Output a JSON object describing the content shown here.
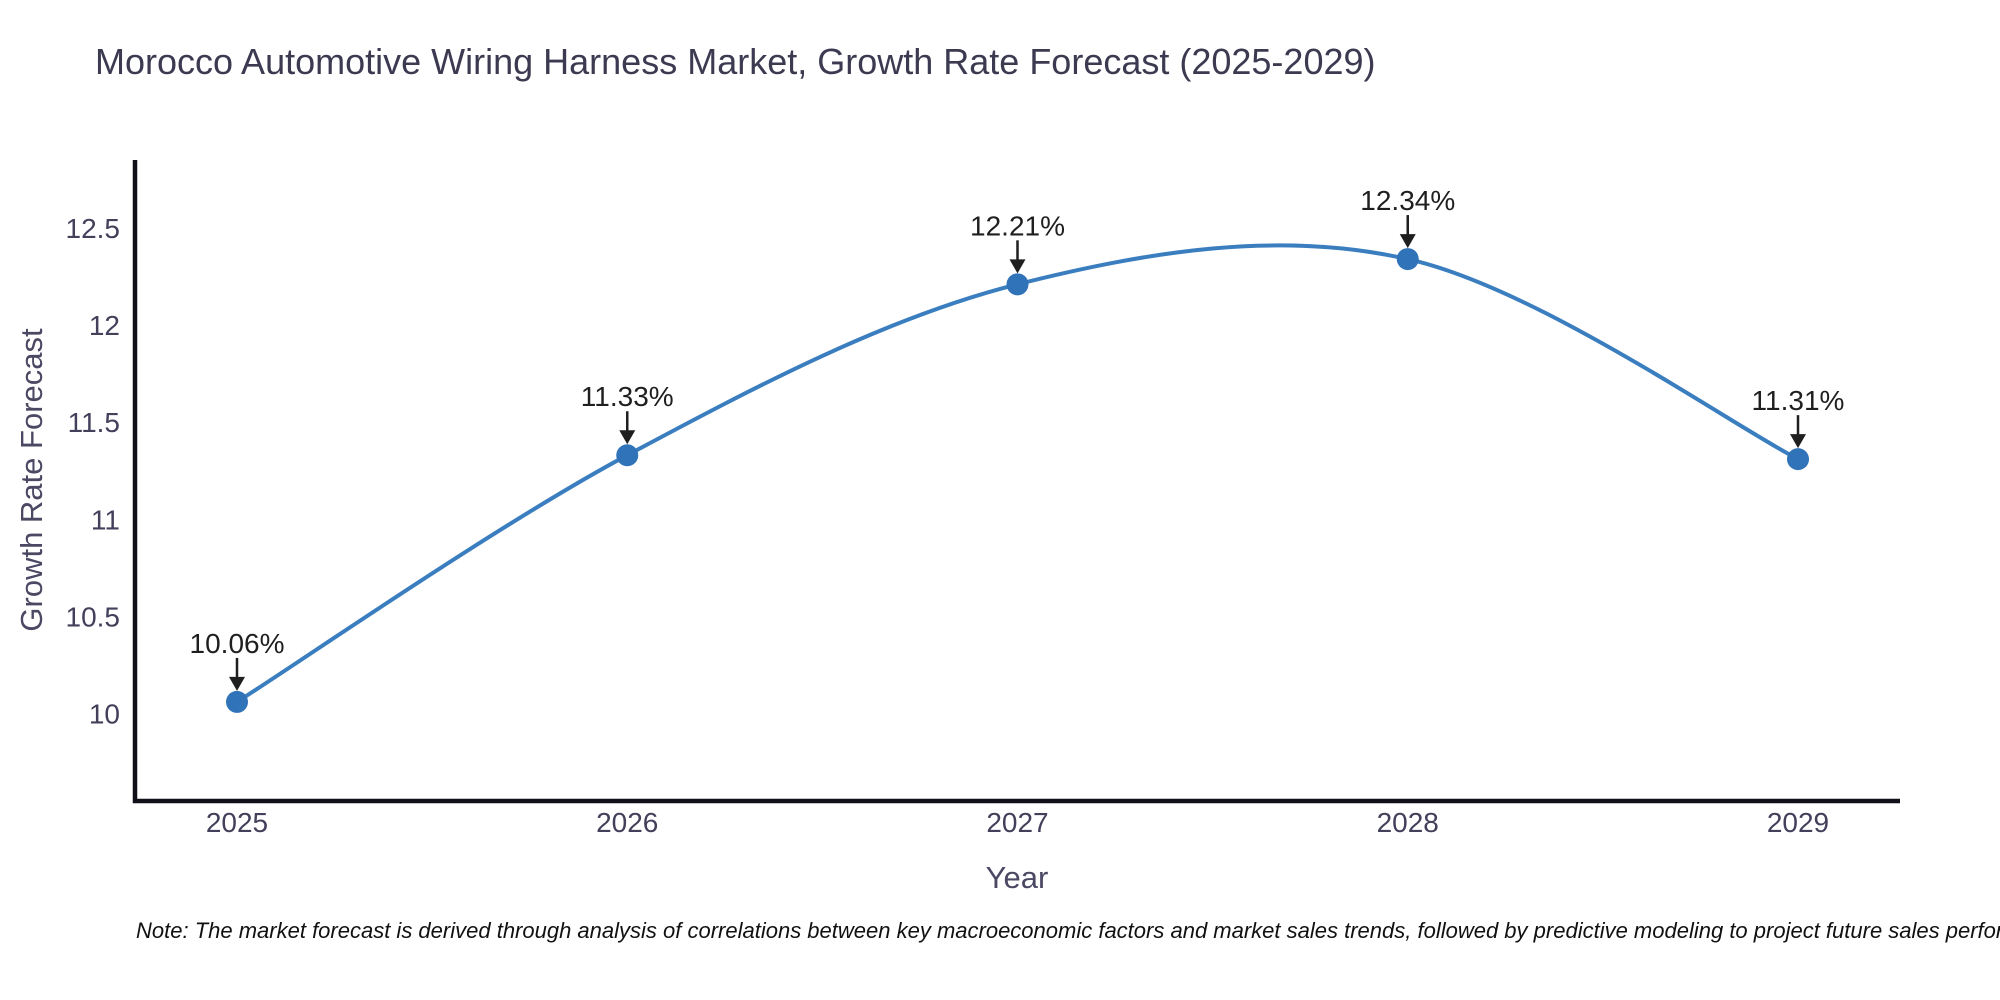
{
  "chart_data": {
    "type": "line",
    "title": "Morocco Automotive Wiring Harness Market, Growth Rate Forecast (2025-2029)",
    "xlabel": "Year",
    "ylabel": "Growth Rate Forecast",
    "categories": [
      "2025",
      "2026",
      "2027",
      "2028",
      "2029"
    ],
    "series": [
      {
        "name": "Growth Rate Forecast",
        "values": [
          10.06,
          11.33,
          12.21,
          12.34,
          11.31
        ]
      }
    ],
    "point_labels": [
      "10.06%",
      "11.33%",
      "12.21%",
      "12.34%",
      "11.31%"
    ],
    "yticks": [
      10,
      10.5,
      11,
      11.5,
      12,
      12.5
    ],
    "ylim": [
      9.55,
      12.85
    ],
    "line_shape": "spline",
    "grid": false,
    "legend_position": "none",
    "colors": {
      "line": "#3a7ebf",
      "marker": "#3173b8",
      "axis": "#101018",
      "tick_label": "#42405a",
      "annotation_text": "#1f1f1f",
      "title_text": "#3b3a51"
    },
    "note": "Note: The market forecast is derived through analysis of correlations between key macroeconomic factors and market sales trends, followed by predictive modeling to project future sales performance."
  }
}
